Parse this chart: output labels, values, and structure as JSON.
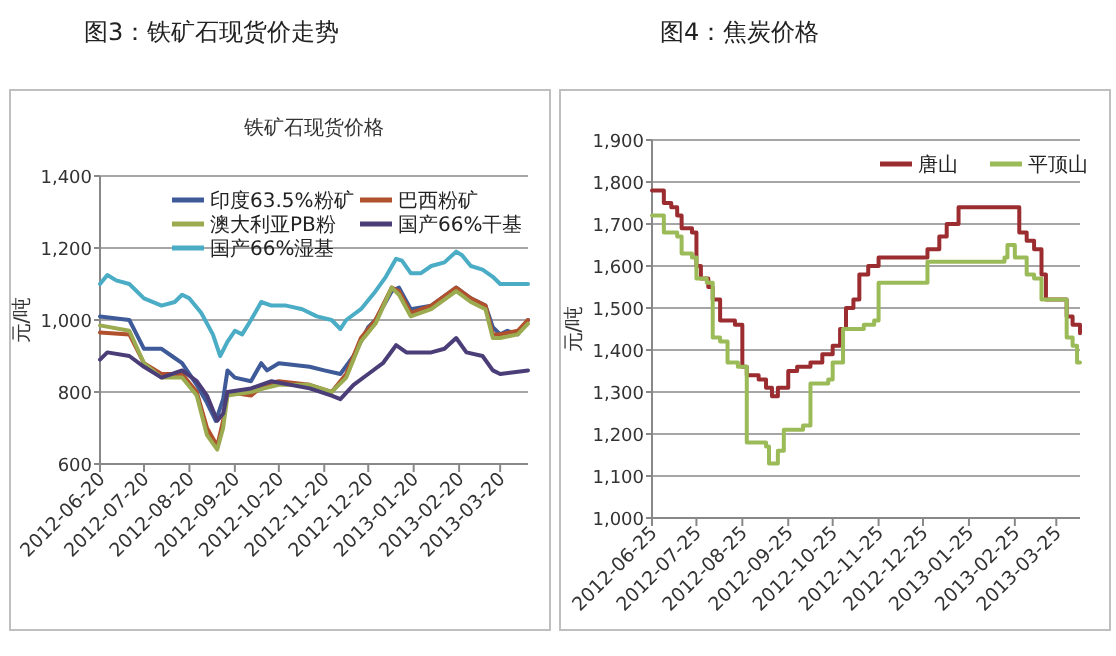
{
  "chart_data": [
    {
      "type": "line",
      "title": "图3：铁矿石现货价走势",
      "subtitle": "铁矿石现货价格",
      "ylabel": "元/吨",
      "xlim": [
        "2012-06-20",
        "2013-04-08"
      ],
      "ylim": [
        600,
        1400
      ],
      "xticks": [
        "2012-06-20",
        "2012-07-20",
        "2012-08-20",
        "2012-09-20",
        "2012-10-20",
        "2012-11-20",
        "2012-12-20",
        "2013-01-20",
        "2013-02-20",
        "2013-03-20"
      ],
      "yticks": [
        600,
        800,
        {
          "value": 1000,
          "label": "1,000"
        },
        {
          "value": 1200,
          "label": "1,200"
        },
        {
          "value": 1400,
          "label": "1,400"
        }
      ],
      "grid": "y",
      "legend": "top right",
      "series": [
        {
          "name": "印度63.5%粉矿",
          "color": "#3f5a98",
          "x": [
            "2012-06-20",
            "2012-07-10",
            "2012-07-15",
            "2012-07-20",
            "2012-08-01",
            "2012-08-08",
            "2012-08-15",
            "2012-08-25",
            "2012-09-01",
            "2012-09-07",
            "2012-09-12",
            "2012-09-15",
            "2012-09-20",
            "2012-10-01",
            "2012-10-08",
            "2012-10-12",
            "2012-10-20",
            "2012-11-10",
            "2012-11-20",
            "2012-12-01",
            "2012-12-10",
            "2012-12-20",
            "2012-12-25",
            "2013-01-05",
            "2013-01-10",
            "2013-01-18",
            "2013-02-01",
            "2013-02-18",
            "2013-02-28",
            "2013-03-10",
            "2013-03-15",
            "2013-03-20",
            "2013-03-25",
            "2013-04-01",
            "2013-04-08"
          ],
          "values": [
            1010,
            1000,
            960,
            920,
            920,
            900,
            880,
            820,
            770,
            720,
            780,
            860,
            840,
            830,
            880,
            860,
            880,
            870,
            860,
            850,
            900,
            980,
            1000,
            1080,
            1090,
            1030,
            1040,
            1090,
            1060,
            1040,
            980,
            960,
            970,
            960,
            1000
          ]
        },
        {
          "name": "巴西粉矿",
          "color": "#b0502c",
          "x": [
            "2012-06-20",
            "2012-07-10",
            "2012-07-20",
            "2012-08-01",
            "2012-08-15",
            "2012-08-25",
            "2012-09-01",
            "2012-09-08",
            "2012-09-12",
            "2012-09-15",
            "2012-10-01",
            "2012-10-10",
            "2012-10-20",
            "2012-11-10",
            "2012-11-25",
            "2012-12-05",
            "2012-12-15",
            "2012-12-25",
            "2013-01-05",
            "2013-01-10",
            "2013-01-18",
            "2013-02-01",
            "2013-02-18",
            "2013-02-28",
            "2013-03-10",
            "2013-03-15",
            "2013-03-20",
            "2013-04-01",
            "2013-04-08"
          ],
          "values": [
            965,
            960,
            880,
            850,
            850,
            800,
            700,
            650,
            720,
            800,
            790,
            820,
            830,
            820,
            800,
            850,
            950,
            1000,
            1090,
            1080,
            1020,
            1040,
            1090,
            1060,
            1040,
            960,
            960,
            970,
            1000
          ]
        },
        {
          "name": "澳大利亚PB粉",
          "color": "#9bab50",
          "x": [
            "2012-06-20",
            "2012-07-10",
            "2012-07-20",
            "2012-08-01",
            "2012-08-15",
            "2012-08-25",
            "2012-09-01",
            "2012-09-08",
            "2012-09-12",
            "2012-09-15",
            "2012-10-01",
            "2012-10-10",
            "2012-10-20",
            "2012-11-10",
            "2012-11-25",
            "2012-12-05",
            "2012-12-15",
            "2012-12-25",
            "2013-01-05",
            "2013-01-10",
            "2013-01-18",
            "2013-02-01",
            "2013-02-18",
            "2013-02-28",
            "2013-03-10",
            "2013-03-15",
            "2013-03-20",
            "2013-04-01",
            "2013-04-08"
          ],
          "values": [
            985,
            970,
            880,
            840,
            840,
            790,
            680,
            640,
            700,
            790,
            800,
            810,
            820,
            820,
            800,
            840,
            940,
            990,
            1090,
            1070,
            1010,
            1030,
            1080,
            1050,
            1030,
            950,
            950,
            960,
            990
          ]
        },
        {
          "name": "国产66%干基",
          "color": "#4b3e78",
          "x": [
            "2012-06-20",
            "2012-06-25",
            "2012-07-10",
            "2012-07-20",
            "2012-08-01",
            "2012-08-15",
            "2012-08-25",
            "2012-09-01",
            "2012-09-08",
            "2012-09-12",
            "2012-09-15",
            "2012-10-01",
            "2012-10-15",
            "2012-11-10",
            "2012-11-25",
            "2012-12-01",
            "2012-12-10",
            "2012-12-20",
            "2012-12-30",
            "2013-01-08",
            "2013-01-15",
            "2013-02-01",
            "2013-02-10",
            "2013-02-18",
            "2013-02-25",
            "2013-03-08",
            "2013-03-15",
            "2013-03-20",
            "2013-04-08"
          ],
          "values": [
            890,
            910,
            900,
            870,
            840,
            860,
            830,
            790,
            720,
            740,
            800,
            810,
            830,
            810,
            790,
            780,
            820,
            850,
            880,
            930,
            910,
            910,
            920,
            950,
            910,
            900,
            860,
            850,
            860
          ]
        },
        {
          "name": "国产66%湿基",
          "color": "#4bacc6",
          "x": [
            "2012-06-20",
            "2012-06-25",
            "2012-07-01",
            "2012-07-10",
            "2012-07-20",
            "2012-08-01",
            "2012-08-10",
            "2012-08-15",
            "2012-08-20",
            "2012-08-28",
            "2012-09-05",
            "2012-09-10",
            "2012-09-15",
            "2012-09-20",
            "2012-09-25",
            "2012-10-01",
            "2012-10-08",
            "2012-10-15",
            "2012-10-25",
            "2012-11-05",
            "2012-11-15",
            "2012-11-25",
            "2012-12-01",
            "2012-12-05",
            "2012-12-15",
            "2012-12-25",
            "2013-01-01",
            "2013-01-08",
            "2013-01-12",
            "2013-01-18",
            "2013-01-25",
            "2013-02-01",
            "2013-02-10",
            "2013-02-18",
            "2013-02-22",
            "2013-02-28",
            "2013-03-08",
            "2013-03-15",
            "2013-03-20",
            "2013-04-08"
          ],
          "values": [
            1100,
            1125,
            1110,
            1100,
            1060,
            1040,
            1050,
            1070,
            1060,
            1020,
            960,
            900,
            940,
            970,
            960,
            1000,
            1050,
            1040,
            1040,
            1030,
            1010,
            1000,
            975,
            1000,
            1030,
            1080,
            1120,
            1170,
            1165,
            1130,
            1130,
            1150,
            1160,
            1190,
            1180,
            1150,
            1140,
            1120,
            1100,
            1100
          ]
        }
      ]
    },
    {
      "type": "step",
      "title": "图4：焦炭价格",
      "ylabel": "元/吨",
      "xlim": [
        "2012-06-25",
        "2013-04-10"
      ],
      "ylim": [
        1000,
        1900
      ],
      "xticks": [
        "2012-06-25",
        "2012-07-25",
        "2012-08-25",
        "2012-09-25",
        "2012-10-25",
        "2012-11-25",
        "2012-12-25",
        "2013-01-25",
        "2013-02-25",
        "2013-03-25"
      ],
      "yticks": [
        {
          "value": 1000,
          "label": "1,000"
        },
        {
          "value": 1100,
          "label": "1,100"
        },
        {
          "value": 1200,
          "label": "1,200"
        },
        {
          "value": 1300,
          "label": "1,300"
        },
        {
          "value": 1400,
          "label": "1,400"
        },
        {
          "value": 1500,
          "label": "1,500"
        },
        {
          "value": 1600,
          "label": "1,600"
        },
        {
          "value": 1700,
          "label": "1,700"
        },
        {
          "value": 1800,
          "label": "1,800"
        },
        {
          "value": 1900,
          "label": "1,900"
        }
      ],
      "grid": "y",
      "legend": "top right",
      "series": [
        {
          "name": "唐山",
          "color": "#9b2d30",
          "x": [
            "2012-06-25",
            "2012-07-03",
            "2012-07-08",
            "2012-07-12",
            "2012-07-15",
            "2012-07-22",
            "2012-07-25",
            "2012-07-28",
            "2012-08-02",
            "2012-08-05",
            "2012-08-10",
            "2012-08-20",
            "2012-08-25",
            "2012-08-28",
            "2012-09-05",
            "2012-09-10",
            "2012-09-14",
            "2012-09-18",
            "2012-09-25",
            "2012-10-01",
            "2012-10-10",
            "2012-10-18",
            "2012-10-25",
            "2012-10-30",
            "2012-11-03",
            "2012-11-08",
            "2012-11-12",
            "2012-11-18",
            "2012-11-25",
            "2012-12-25",
            "2012-12-28",
            "2013-01-05",
            "2013-01-10",
            "2013-01-18",
            "2013-02-25",
            "2013-02-28",
            "2013-03-05",
            "2013-03-10",
            "2013-03-15",
            "2013-03-18",
            "2013-03-28",
            "2013-04-01",
            "2013-04-05",
            "2013-04-10"
          ],
          "values": [
            1780,
            1750,
            1740,
            1720,
            1690,
            1680,
            1600,
            1570,
            1550,
            1520,
            1470,
            1460,
            1360,
            1340,
            1330,
            1310,
            1290,
            1310,
            1350,
            1360,
            1370,
            1390,
            1410,
            1450,
            1500,
            1520,
            1580,
            1600,
            1620,
            1620,
            1640,
            1670,
            1700,
            1740,
            1740,
            1680,
            1660,
            1640,
            1580,
            1520,
            1520,
            1480,
            1460,
            1440
          ]
        },
        {
          "name": "平顶山",
          "color": "#9bbb59",
          "x": [
            "2012-06-25",
            "2012-07-03",
            "2012-07-12",
            "2012-07-15",
            "2012-07-22",
            "2012-07-25",
            "2012-08-01",
            "2012-08-05",
            "2012-08-10",
            "2012-08-15",
            "2012-08-22",
            "2012-08-28",
            "2012-09-10",
            "2012-09-12",
            "2012-09-18",
            "2012-09-22",
            "2012-10-05",
            "2012-10-10",
            "2012-10-22",
            "2012-10-25",
            "2012-11-01",
            "2012-11-15",
            "2012-11-22",
            "2012-11-25",
            "2012-12-25",
            "2012-12-28",
            "2013-02-18",
            "2013-02-20",
            "2013-02-25",
            "2013-03-05",
            "2013-03-10",
            "2013-03-15",
            "2013-03-28",
            "2013-04-01",
            "2013-04-05",
            "2013-04-08",
            "2013-04-10"
          ],
          "values": [
            1720,
            1680,
            1670,
            1630,
            1620,
            1570,
            1560,
            1430,
            1420,
            1370,
            1360,
            1180,
            1170,
            1130,
            1160,
            1210,
            1220,
            1320,
            1330,
            1370,
            1450,
            1460,
            1470,
            1560,
            1560,
            1610,
            1620,
            1650,
            1620,
            1580,
            1570,
            1520,
            1520,
            1430,
            1410,
            1370,
            1370
          ]
        }
      ]
    }
  ]
}
